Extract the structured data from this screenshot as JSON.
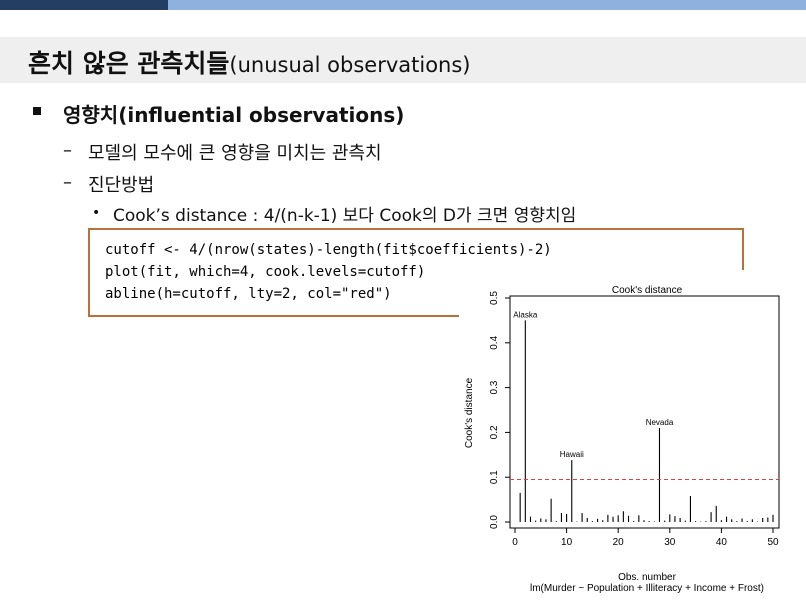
{
  "slide": {
    "title_ko": "흔치 않은 관측치들",
    "title_en": "(unusual observations)",
    "bullet1": "영향치(influential observations)",
    "dash1": "모델의 모수에 큰 영향을 미치는 관측치",
    "dash2": "진단방법",
    "sub_bullet": "Cook’s distance :  4/(n-k-1) 보다 Cook의 D가 크면 영향치임",
    "dash_mark": "–",
    "dot_mark": "•"
  },
  "code": {
    "line1": "cutoff <- 4/(nrow(states)-length(fit$coefficients)-2)",
    "line2": "plot(fit, which=4, cook.levels=cutoff)",
    "line3": "abline(h=cutoff, lty=2, col=\"red\")"
  },
  "chart_data": {
    "type": "bar",
    "title": "Cook's distance",
    "xlabel": "Obs. number",
    "subtitle": "lm(Murder ~ Population + Illiteracy + Income + Frost)",
    "ylabel": "Cook's distance",
    "xlim": [
      0,
      50
    ],
    "ylim": [
      0,
      0.5
    ],
    "xticks": [
      0,
      10,
      20,
      30,
      40,
      50
    ],
    "yticks": [
      "0.0",
      "0.1",
      "0.2",
      "0.3",
      "0.4",
      "0.5"
    ],
    "cutoff": 0.095,
    "cutoff_color": "#e04040",
    "x": [
      1,
      2,
      3,
      4,
      5,
      6,
      7,
      8,
      9,
      10,
      11,
      12,
      13,
      14,
      15,
      16,
      17,
      18,
      19,
      20,
      21,
      22,
      23,
      24,
      25,
      26,
      27,
      28,
      29,
      30,
      31,
      32,
      33,
      34,
      35,
      36,
      37,
      38,
      39,
      40,
      41,
      42,
      43,
      44,
      45,
      46,
      47,
      48,
      49,
      50
    ],
    "values": [
      0.065,
      0.45,
      0.012,
      0.003,
      0.008,
      0.006,
      0.052,
      0.002,
      0.02,
      0.018,
      0.138,
      0.001,
      0.02,
      0.009,
      0.002,
      0.007,
      0.004,
      0.016,
      0.012,
      0.015,
      0.024,
      0.014,
      0.002,
      0.015,
      0.004,
      0.002,
      0.001,
      0.21,
      0.003,
      0.017,
      0.013,
      0.009,
      0.003,
      0.058,
      0.002,
      0.001,
      0.002,
      0.022,
      0.036,
      0.004,
      0.012,
      0.006,
      0.002,
      0.008,
      0.002,
      0.006,
      0.001,
      0.009,
      0.01,
      0.016
    ],
    "annotations": [
      {
        "x": 2,
        "label": "Alaska"
      },
      {
        "x": 11,
        "label": "Hawaii"
      },
      {
        "x": 28,
        "label": "Nevada"
      }
    ]
  }
}
